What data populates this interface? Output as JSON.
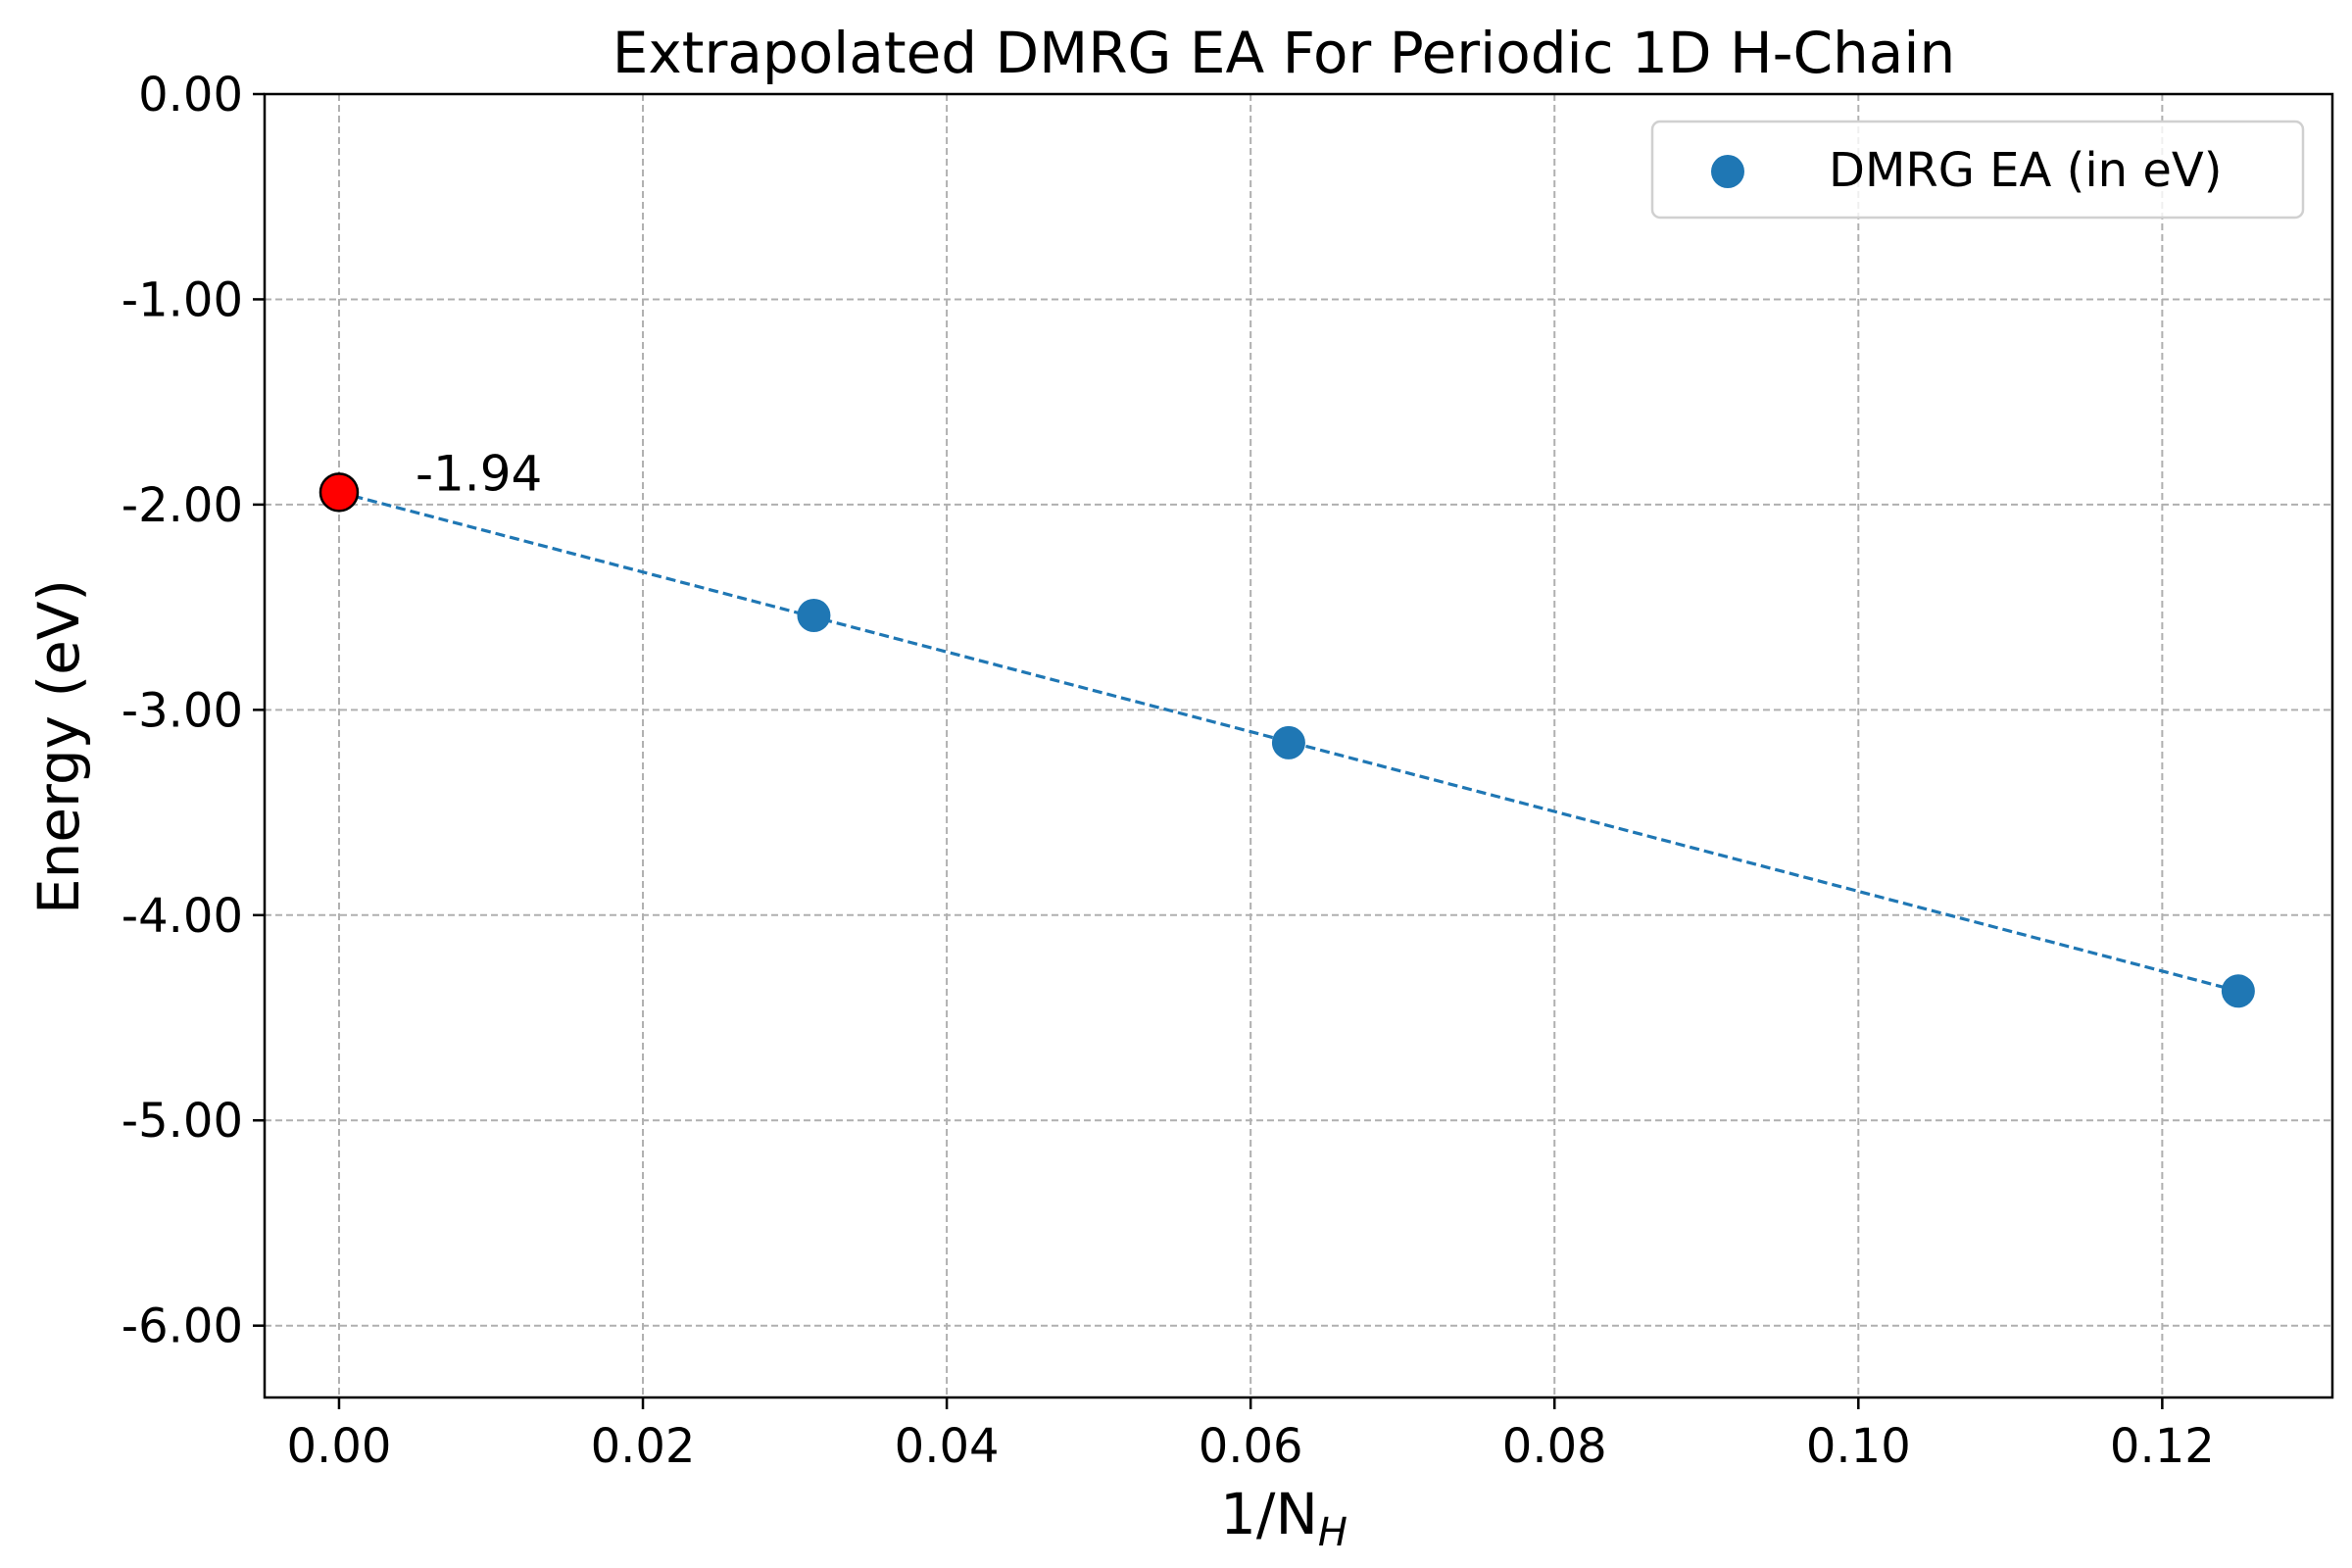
{
  "chart_data": {
    "type": "scatter",
    "title": "Extrapolated DMRG EA For Periodic 1D H-Chain",
    "xlabel": "1/N_H",
    "xlabel_main": "1/N",
    "xlabel_sub": "H",
    "ylabel": "Energy (eV)",
    "xlim": [
      -0.0049,
      0.1312
    ],
    "ylim": [
      -6.35,
      0.0
    ],
    "xticks": [
      0.0,
      0.02,
      0.04,
      0.06,
      0.08,
      0.1,
      0.12
    ],
    "xtick_labels": [
      "0.00",
      "0.02",
      "0.04",
      "0.06",
      "0.08",
      "0.10",
      "0.12"
    ],
    "yticks": [
      0.0,
      -1.0,
      -2.0,
      -3.0,
      -4.0,
      -5.0,
      -6.0
    ],
    "ytick_labels": [
      "0.00",
      "-1.00",
      "-2.00",
      "-3.00",
      "-4.00",
      "-5.00",
      "-6.00"
    ],
    "grid": true,
    "legend_position": "top-right",
    "series": [
      {
        "name": "DMRG EA (in eV)",
        "type": "scatter",
        "color": "#1f77b4",
        "x": [
          0.03125,
          0.0625,
          0.125
        ],
        "y": [
          -2.54,
          -3.16,
          -4.37
        ]
      }
    ],
    "fit_line": {
      "style": "dashed",
      "color": "#1f77b4",
      "x": [
        0.0,
        0.125
      ],
      "y": [
        -1.94,
        -4.37
      ]
    },
    "extrapolated_point": {
      "x": 0.0,
      "y": -1.94,
      "color": "#ff0000",
      "label": "-1.94"
    }
  }
}
